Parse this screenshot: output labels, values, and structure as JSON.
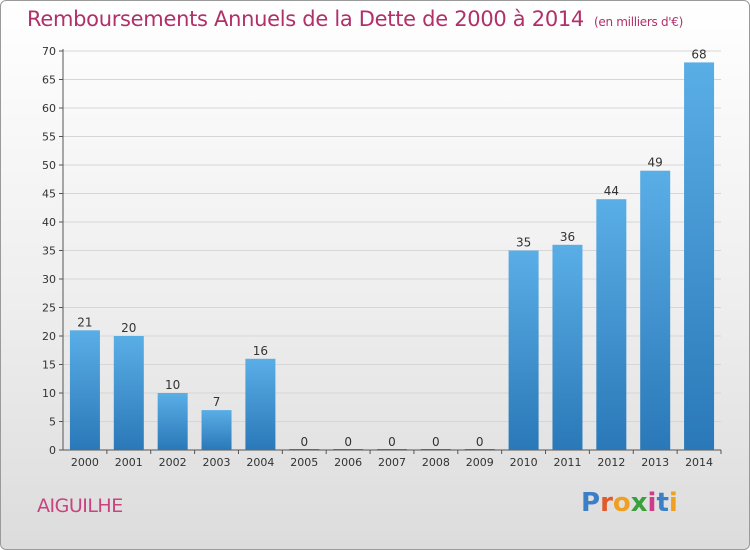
{
  "title": "Remboursements Annuels de la Dette de 2000 à 2014",
  "subtitle": "(en milliers d'€)",
  "commune": "AIGUILHE",
  "logo": {
    "letters": [
      "P",
      "r",
      "o",
      "x",
      "i",
      "t",
      "i"
    ],
    "colors": [
      "#3a7fc8",
      "#e05a2a",
      "#f0a020",
      "#3aa03a",
      "#d03a8a",
      "#3a7fc8",
      "#f0a020"
    ]
  },
  "chart_data": {
    "type": "bar",
    "categories": [
      "2000",
      "2001",
      "2002",
      "2003",
      "2004",
      "2005",
      "2006",
      "2007",
      "2008",
      "2009",
      "2010",
      "2011",
      "2012",
      "2013",
      "2014"
    ],
    "values": [
      21,
      20,
      10,
      7,
      16,
      0,
      0,
      0,
      0,
      0,
      35,
      36,
      44,
      49,
      68
    ],
    "data_labels": [
      "21",
      "20",
      "10",
      "7",
      "16",
      "0",
      "0",
      "0",
      "0",
      "0",
      "35",
      "36",
      "44",
      "49",
      "68"
    ],
    "ylim": [
      0,
      70
    ],
    "yticks": [
      0,
      5,
      10,
      15,
      20,
      25,
      30,
      35,
      40,
      45,
      50,
      55,
      60,
      65,
      70
    ],
    "grid": true,
    "bar_color_top": "#5aaee6",
    "bar_color_bottom": "#2a78b8"
  }
}
